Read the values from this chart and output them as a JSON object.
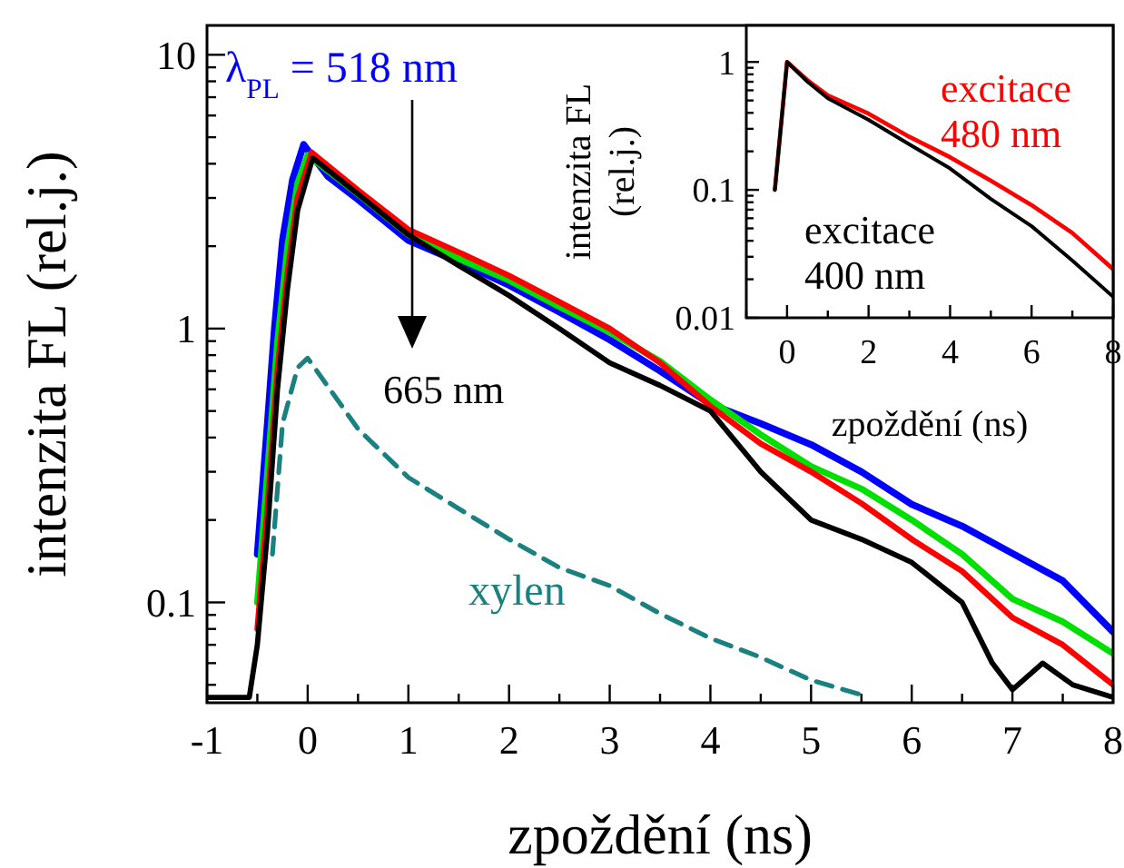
{
  "chart_data": [
    {
      "type": "line",
      "xlabel": "zpoždění (ns)",
      "ylabel": "intenzita FL (rel.j.)",
      "log": "y",
      "xlim": [
        -1,
        8
      ],
      "ylim": [
        0.043,
        12.8
      ],
      "xticks": [
        -1,
        {
          "value": -0.5,
          "label": null
        },
        0,
        {
          "value": 0.5,
          "label": null
        },
        1,
        {
          "value": 1.5,
          "label": null
        },
        2,
        {
          "value": 2.5,
          "label": null
        },
        3,
        {
          "value": 3.5,
          "label": null
        },
        4,
        {
          "value": 4.5,
          "label": null
        },
        5,
        {
          "value": 5.5,
          "label": null
        },
        6,
        {
          "value": 6.5,
          "label": null
        },
        7,
        {
          "value": 7.5,
          "label": null
        },
        8
      ],
      "yticks": [
        {
          "value": 0.05,
          "label": null
        },
        {
          "value": 0.06,
          "label": null
        },
        {
          "value": 0.07,
          "label": null
        },
        {
          "value": 0.08,
          "label": null
        },
        {
          "value": 0.09,
          "label": null
        },
        0.1,
        {
          "value": 0.2,
          "label": null
        },
        {
          "value": 0.3,
          "label": null
        },
        {
          "value": 0.4,
          "label": null
        },
        {
          "value": 0.5,
          "label": null
        },
        {
          "value": 0.6,
          "label": null
        },
        {
          "value": 0.7,
          "label": null
        },
        {
          "value": 0.8,
          "label": null
        },
        {
          "value": 0.9,
          "label": null
        },
        1,
        {
          "value": 2,
          "label": null
        },
        {
          "value": 3,
          "label": null
        },
        {
          "value": 4,
          "label": null
        },
        {
          "value": 5,
          "label": null
        },
        {
          "value": 6,
          "label": null
        },
        {
          "value": 7,
          "label": null
        },
        {
          "value": 8,
          "label": null
        },
        {
          "value": 9,
          "label": null
        },
        10
      ],
      "annotations": [
        "665 nm"
      ],
      "series": [
        {
          "name": "λ$_{PL}$ = 518 nm",
          "color": "#0000ff",
          "x": [
            -0.5,
            -0.4,
            -0.33,
            -0.25,
            -0.15,
            -0.04,
            0.2,
            0.5,
            1,
            1.5,
            2,
            2.5,
            3,
            3.5,
            4,
            4.5,
            5,
            5.5,
            6,
            6.5,
            7,
            7.5,
            8
          ],
          "values": [
            0.15,
            0.45,
            1.0,
            2.1,
            3.5,
            4.7,
            3.6,
            2.96,
            2.1,
            1.75,
            1.44,
            1.15,
            0.91,
            0.7,
            0.53,
            0.45,
            0.377,
            0.3,
            0.228,
            0.19,
            0.151,
            0.12,
            0.078
          ]
        },
        {
          "color": "#00e000",
          "x": [
            -0.5,
            -0.4,
            -0.3,
            -0.2,
            -0.1,
            0,
            0.5,
            1,
            1.5,
            2,
            2.5,
            3,
            3.5,
            4,
            4.5,
            5,
            5.5,
            6,
            6.5,
            7,
            7.5,
            8
          ],
          "values": [
            0.1,
            0.3,
            0.9,
            2.0,
            3.4,
            4.3,
            3.1,
            2.2,
            1.8,
            1.5,
            1.2,
            0.97,
            0.76,
            0.55,
            0.41,
            0.314,
            0.26,
            0.2,
            0.15,
            0.103,
            0.085,
            0.065
          ]
        },
        {
          "color": "#ff0000",
          "x": [
            -0.5,
            -0.4,
            -0.3,
            -0.2,
            -0.1,
            0.04,
            0.5,
            1,
            1.5,
            2,
            2.5,
            3,
            3.5,
            4,
            4.5,
            5,
            5.5,
            6,
            6.5,
            7,
            7.5,
            8
          ],
          "values": [
            0.08,
            0.22,
            0.7,
            1.6,
            3.0,
            4.4,
            3.2,
            2.3,
            1.9,
            1.56,
            1.25,
            1.0,
            0.75,
            0.52,
            0.38,
            0.3,
            0.23,
            0.17,
            0.13,
            0.088,
            0.07,
            0.05
          ]
        },
        {
          "color": "#000000",
          "x": [
            -1,
            -0.7,
            -0.58,
            -0.5,
            -0.4,
            -0.3,
            -0.2,
            -0.1,
            0.05,
            0.5,
            1,
            1.5,
            2,
            2.5,
            3,
            3.5,
            4,
            4.5,
            5,
            5.5,
            6,
            6.5,
            6.8,
            7,
            7.3,
            7.6,
            8
          ],
          "values": [
            0.045,
            0.045,
            0.045,
            0.07,
            0.18,
            0.6,
            1.4,
            2.7,
            4.2,
            3.1,
            2.2,
            1.7,
            1.32,
            1.0,
            0.75,
            0.62,
            0.5,
            0.3,
            0.2,
            0.17,
            0.14,
            0.1,
            0.06,
            0.048,
            0.06,
            0.05,
            0.045
          ]
        },
        {
          "name": "xylen",
          "color": "#1a8080",
          "line_style": "dashed",
          "x": [
            -0.35,
            -0.25,
            -0.1,
            0,
            0.25,
            0.5,
            1,
            1.5,
            2,
            2.5,
            3,
            3.5,
            4,
            4.5,
            5,
            5.5
          ],
          "values": [
            0.15,
            0.45,
            0.72,
            0.78,
            0.58,
            0.43,
            0.286,
            0.22,
            0.17,
            0.134,
            0.115,
            0.091,
            0.074,
            0.063,
            0.052,
            0.046
          ]
        }
      ]
    },
    {
      "type": "line",
      "xlabel": "zpoždění (ns)",
      "ylabel": "intenzita FL (rel.j.)",
      "log": "y",
      "xlim": [
        -1,
        8
      ],
      "ylim": [
        0.01,
        1.93
      ],
      "xticks": [
        {
          "value": -1,
          "label": null
        },
        0,
        {
          "value": 1,
          "label": null
        },
        2,
        {
          "value": 3,
          "label": null
        },
        4,
        {
          "value": 5,
          "label": null
        },
        6,
        {
          "value": 7,
          "label": null
        },
        8
      ],
      "yticks": [
        0.01,
        {
          "value": 0.02,
          "label": null
        },
        {
          "value": 0.03,
          "label": null
        },
        {
          "value": 0.04,
          "label": null
        },
        {
          "value": 0.05,
          "label": null
        },
        {
          "value": 0.06,
          "label": null
        },
        {
          "value": 0.07,
          "label": null
        },
        {
          "value": 0.08,
          "label": null
        },
        {
          "value": 0.09,
          "label": null
        },
        0.1,
        {
          "value": 0.2,
          "label": null
        },
        {
          "value": 0.3,
          "label": null
        },
        {
          "value": 0.4,
          "label": null
        },
        {
          "value": 0.5,
          "label": null
        },
        {
          "value": 0.6,
          "label": null
        },
        {
          "value": 0.7,
          "label": null
        },
        {
          "value": 0.8,
          "label": null
        },
        {
          "value": 0.9,
          "label": null
        },
        1
      ],
      "series": [
        {
          "name": "excitace 480 nm",
          "color": "#ff0000",
          "x": [
            -0.3,
            0,
            0.5,
            1,
            2,
            3,
            4,
            5,
            6,
            7,
            8
          ],
          "values": [
            0.1,
            1,
            0.72,
            0.547,
            0.394,
            0.26,
            0.18,
            0.118,
            0.076,
            0.046,
            0.024
          ]
        },
        {
          "name": "excitace 400 nm",
          "color": "#000000",
          "x": [
            -0.3,
            0,
            0.5,
            1,
            2,
            3,
            4,
            5,
            6,
            7,
            8
          ],
          "values": [
            0.1,
            1,
            0.7,
            0.52,
            0.353,
            0.227,
            0.147,
            0.085,
            0.052,
            0.028,
            0.0146
          ]
        }
      ]
    }
  ]
}
